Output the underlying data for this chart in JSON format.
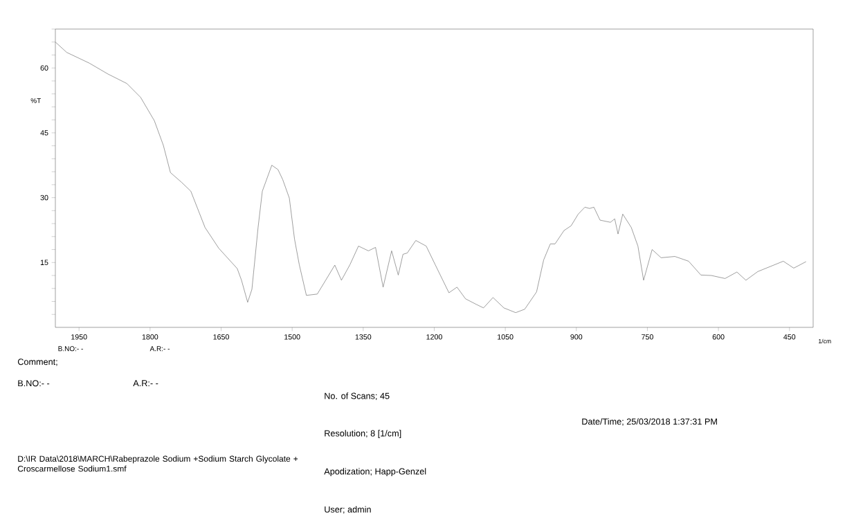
{
  "chart_data": {
    "type": "line",
    "xlabel": "1/cm",
    "ylabel": "%T",
    "x": [
      2000,
      1976,
      1928,
      1889,
      1849,
      1820,
      1791,
      1772,
      1757,
      1733,
      1714,
      1684,
      1655,
      1616,
      1607,
      1594,
      1585,
      1572,
      1563,
      1543,
      1530,
      1520,
      1506,
      1495,
      1485,
      1470,
      1447,
      1432,
      1410,
      1396,
      1378,
      1360,
      1339,
      1324,
      1308,
      1290,
      1276,
      1266,
      1257,
      1239,
      1217,
      1198,
      1169,
      1152,
      1134,
      1111,
      1096,
      1076,
      1053,
      1028,
      1009,
      984,
      969,
      955,
      945,
      926,
      911,
      896,
      882,
      872,
      863,
      850,
      828,
      819,
      812,
      802,
      784,
      770,
      758,
      740,
      721,
      692,
      663,
      637,
      615,
      586,
      561,
      542,
      517,
      463,
      441,
      415
    ],
    "series": [
      {
        "color": "#6e6e6e",
        "values": [
          66.0,
          63.6,
          61.1,
          58.6,
          56.4,
          53.2,
          47.8,
          42.1,
          35.8,
          33.5,
          31.5,
          23.1,
          18.3,
          13.6,
          10.9,
          5.8,
          8.8,
          23.1,
          31.5,
          37.5,
          36.5,
          34.2,
          29.9,
          20.4,
          14.5,
          7.4,
          7.7,
          10.4,
          14.4,
          10.9,
          14.5,
          18.8,
          17.7,
          18.5,
          9.3,
          17.7,
          12.1,
          16.9,
          17.2,
          20.1,
          18.8,
          14.5,
          8.0,
          9.3,
          6.6,
          5.3,
          4.5,
          6.9,
          4.5,
          3.4,
          4.2,
          8.2,
          15.6,
          19.3,
          19.3,
          22.4,
          23.5,
          26.2,
          27.8,
          27.5,
          27.8,
          24.8,
          24.3,
          25.1,
          21.6,
          26.2,
          23.1,
          18.8,
          10.9,
          18.0,
          16.1,
          16.4,
          15.3,
          12.1,
          12.0,
          11.3,
          12.8,
          10.9,
          12.9,
          15.3,
          13.7,
          15.2
        ]
      }
    ],
    "xlim": [
      2000,
      400
    ],
    "ylim": [
      0,
      69
    ],
    "xticks": [
      1950,
      1800,
      1650,
      1500,
      1350,
      1200,
      1050,
      900,
      750,
      600,
      450
    ],
    "yticks": [
      {
        "value": 3,
        "label": null
      },
      {
        "value": 6,
        "label": null
      },
      {
        "value": 9,
        "label": null
      },
      {
        "value": 12,
        "label": null
      },
      15,
      {
        "value": 18,
        "label": null
      },
      {
        "value": 21,
        "label": null
      },
      {
        "value": 24,
        "label": null
      },
      {
        "value": 27,
        "label": null
      },
      30,
      {
        "value": 33,
        "label": null
      },
      {
        "value": 36,
        "label": null
      },
      {
        "value": 39,
        "label": null
      },
      {
        "value": 42,
        "label": null
      },
      45,
      {
        "value": 48,
        "label": null
      },
      {
        "value": 51,
        "label": null
      },
      {
        "value": 54,
        "label": null
      },
      {
        "value": 57,
        "label": null
      },
      60,
      {
        "value": 63,
        "label": null
      },
      {
        "value": 66,
        "label": null
      },
      {
        "value": 69,
        "label": null
      }
    ],
    "annotations": [
      "B.NO:- -",
      "A.R:- -",
      "Comment;",
      "B.NO:- -",
      "A.R:- -",
      "No. of Scans; 45",
      "Date/Time; 25/03/2018 1:37:31 PM",
      "Resolution;  8 [1/cm]",
      "D:\\IR Data\\2018\\MARCH\\Rabeprazole Sodium +Sodium Starch Glycolate + Croscarmellose Sodium1.smf",
      "Apodization;  Happ-Genzel",
      "User;   admin"
    ]
  }
}
